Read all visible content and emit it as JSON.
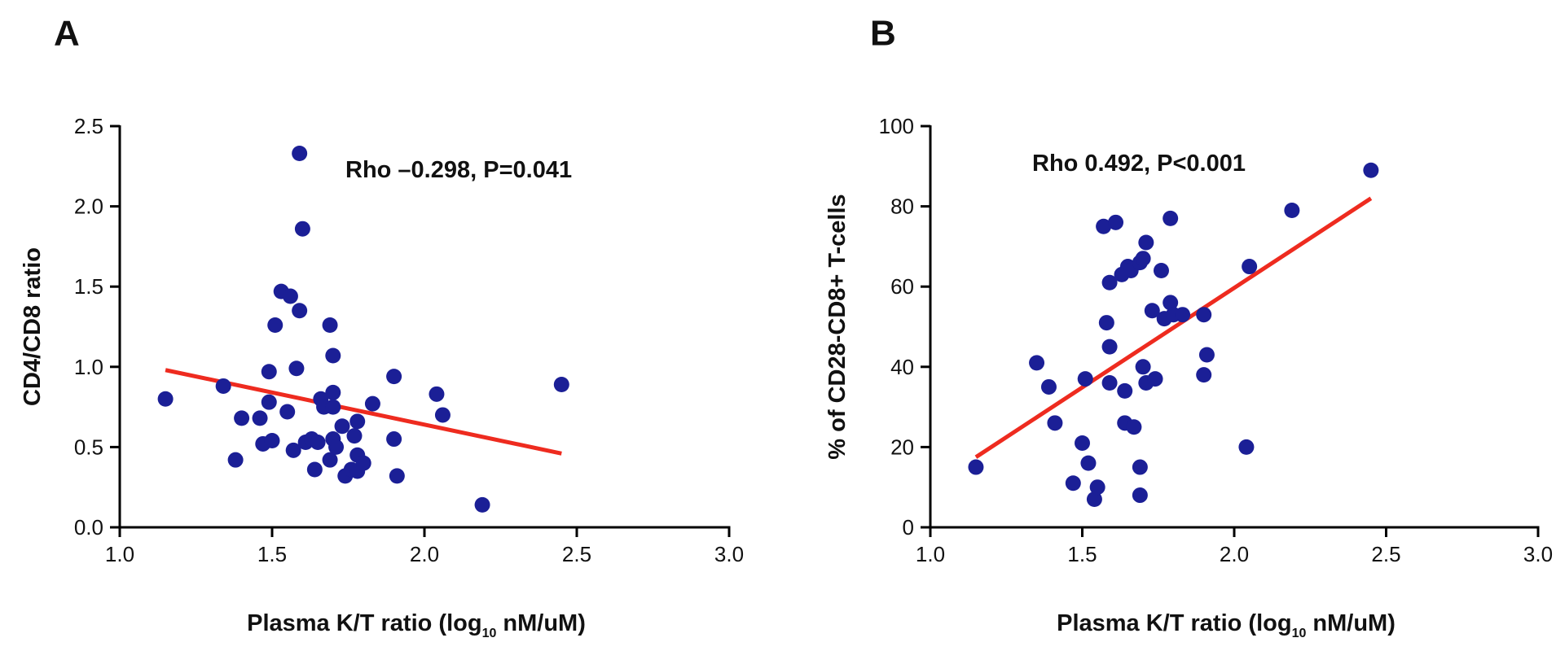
{
  "chart_data": [
    {
      "panel": "A",
      "type": "scatter",
      "annotation": "Rho –0.298, P=0.041",
      "xlabel": "Plasma K/T ratio (log10 nM/uM)",
      "xlabel_parts": [
        "Plasma K/T ratio (log",
        "10",
        " nM/uM)"
      ],
      "ylabel": "CD4/CD8 ratio",
      "xlim": [
        1.0,
        3.0
      ],
      "ylim": [
        0.0,
        2.5
      ],
      "xticks": [
        "1.0",
        "1.5",
        "2.0",
        "2.5",
        "3.0"
      ],
      "yticks": [
        "0.0",
        "0.5",
        "1.0",
        "1.5",
        "2.0",
        "2.5"
      ],
      "point_color": "#1b1f96",
      "line_color": "#ee2b1f",
      "fit_line": {
        "x": [
          1.15,
          2.45
        ],
        "y": [
          0.98,
          0.46
        ]
      },
      "points": [
        [
          1.15,
          0.8
        ],
        [
          1.34,
          0.88
        ],
        [
          1.38,
          0.42
        ],
        [
          1.4,
          0.68
        ],
        [
          1.46,
          0.68
        ],
        [
          1.47,
          0.52
        ],
        [
          1.49,
          0.97
        ],
        [
          1.49,
          0.78
        ],
        [
          1.5,
          0.54
        ],
        [
          1.51,
          1.26
        ],
        [
          1.53,
          1.47
        ],
        [
          1.55,
          0.72
        ],
        [
          1.56,
          1.44
        ],
        [
          1.57,
          0.48
        ],
        [
          1.58,
          0.99
        ],
        [
          1.59,
          2.33
        ],
        [
          1.59,
          1.35
        ],
        [
          1.6,
          1.86
        ],
        [
          1.61,
          0.53
        ],
        [
          1.63,
          0.55
        ],
        [
          1.64,
          0.36
        ],
        [
          1.65,
          0.53
        ],
        [
          1.66,
          0.8
        ],
        [
          1.67,
          0.75
        ],
        [
          1.69,
          1.26
        ],
        [
          1.7,
          1.07
        ],
        [
          1.7,
          0.84
        ],
        [
          1.7,
          0.75
        ],
        [
          1.7,
          0.55
        ],
        [
          1.69,
          0.42
        ],
        [
          1.71,
          0.5
        ],
        [
          1.73,
          0.63
        ],
        [
          1.74,
          0.32
        ],
        [
          1.76,
          0.36
        ],
        [
          1.77,
          0.57
        ],
        [
          1.78,
          0.66
        ],
        [
          1.78,
          0.45
        ],
        [
          1.78,
          0.35
        ],
        [
          1.8,
          0.4
        ],
        [
          1.83,
          0.77
        ],
        [
          1.9,
          0.94
        ],
        [
          1.9,
          0.55
        ],
        [
          1.91,
          0.32
        ],
        [
          2.04,
          0.83
        ],
        [
          2.06,
          0.7
        ],
        [
          2.19,
          0.14
        ],
        [
          2.45,
          0.89
        ]
      ]
    },
    {
      "panel": "B",
      "type": "scatter",
      "annotation": "Rho 0.492, P<0.001",
      "xlabel": "Plasma K/T ratio (log10 nM/uM)",
      "xlabel_parts": [
        "Plasma K/T ratio (log",
        "10",
        " nM/uM)"
      ],
      "ylabel": "% of CD28-CD8+ T-cells",
      "xlim": [
        1.0,
        3.0
      ],
      "ylim": [
        0,
        100
      ],
      "xticks": [
        "1.0",
        "1.5",
        "2.0",
        "2.5",
        "3.0"
      ],
      "yticks": [
        "0",
        "20",
        "40",
        "60",
        "80",
        "100"
      ],
      "point_color": "#1b1f96",
      "line_color": "#ee2b1f",
      "fit_line": {
        "x": [
          1.15,
          2.45
        ],
        "y": [
          17.5,
          82.0
        ]
      },
      "points": [
        [
          1.15,
          15
        ],
        [
          1.35,
          41
        ],
        [
          1.39,
          35
        ],
        [
          1.41,
          26
        ],
        [
          1.47,
          11
        ],
        [
          1.5,
          21
        ],
        [
          1.51,
          37
        ],
        [
          1.52,
          16
        ],
        [
          1.54,
          7
        ],
        [
          1.55,
          10
        ],
        [
          1.57,
          75
        ],
        [
          1.58,
          51
        ],
        [
          1.59,
          45
        ],
        [
          1.59,
          61
        ],
        [
          1.59,
          36
        ],
        [
          1.61,
          76
        ],
        [
          1.63,
          63
        ],
        [
          1.64,
          34
        ],
        [
          1.64,
          26
        ],
        [
          1.65,
          65
        ],
        [
          1.66,
          64
        ],
        [
          1.67,
          25
        ],
        [
          1.69,
          8
        ],
        [
          1.69,
          15
        ],
        [
          1.69,
          66
        ],
        [
          1.7,
          67
        ],
        [
          1.7,
          40
        ],
        [
          1.71,
          71
        ],
        [
          1.71,
          36
        ],
        [
          1.73,
          54
        ],
        [
          1.74,
          37
        ],
        [
          1.76,
          64
        ],
        [
          1.77,
          52
        ],
        [
          1.79,
          77
        ],
        [
          1.79,
          56
        ],
        [
          1.8,
          53
        ],
        [
          1.83,
          53
        ],
        [
          1.9,
          53
        ],
        [
          1.9,
          38
        ],
        [
          1.91,
          43
        ],
        [
          2.04,
          20
        ],
        [
          2.05,
          65
        ],
        [
          2.19,
          79
        ],
        [
          2.45,
          89
        ]
      ]
    }
  ]
}
